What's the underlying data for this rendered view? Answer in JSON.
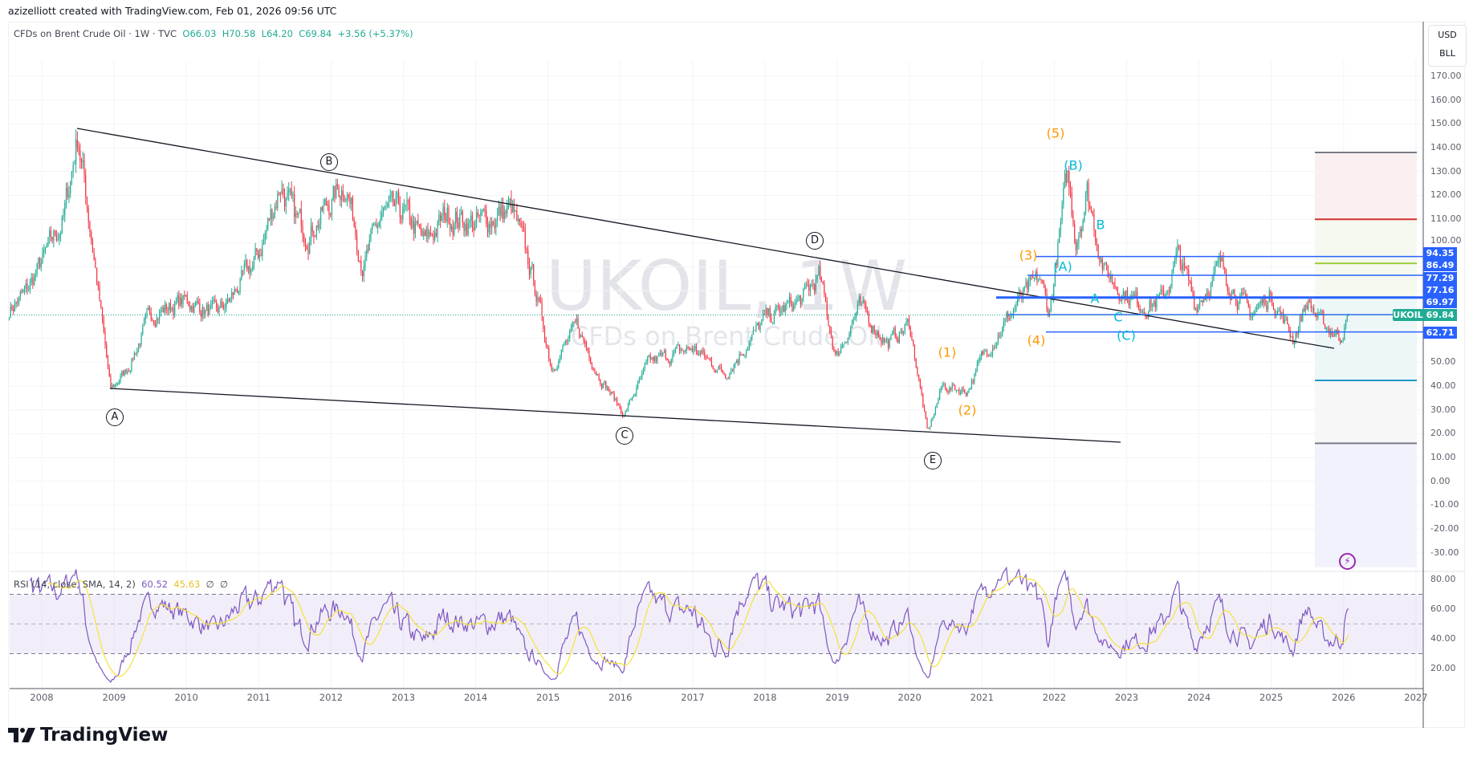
{
  "credit": "azizelliott created with TradingView.com, Feb 01, 2026 09:56 UTC",
  "legend": {
    "name": "CFDs on Brent Crude Oil · 1W · TVC",
    "open": "O66.03",
    "high": "H70.58",
    "low": "L64.20",
    "close": "C69.84",
    "change": "+3.56 (+5.37%)"
  },
  "watermark": {
    "symbol": "UKOIL, 1W",
    "description": "CFDs on Brent Crude Oil"
  },
  "units": {
    "currency": "USD",
    "unit": "BLL"
  },
  "rsi_legend": {
    "label": "RSI (14, close, SMA, 14, 2)",
    "rsi": "60.52",
    "sma": "45.63",
    "v3": "∅",
    "v4": "∅"
  },
  "price_ticks": [
    "170.00",
    "160.00",
    "150.00",
    "140.00",
    "130.00",
    "120.00",
    "110.00",
    "100.00",
    "50.00",
    "40.00",
    "30.00",
    "20.00",
    "10.00",
    "0.00",
    "-10.00",
    "-20.00",
    "-30.00"
  ],
  "rsi_ticks": [
    "80.00",
    "60.00",
    "40.00",
    "20.00"
  ],
  "years": [
    "2008",
    "2009",
    "2010",
    "2011",
    "2012",
    "2013",
    "2014",
    "2015",
    "2016",
    "2017",
    "2018",
    "2019",
    "2020",
    "2021",
    "2022",
    "2023",
    "2024",
    "2025",
    "2026",
    "2027"
  ],
  "price_labels": [
    "94.35",
    "86.49",
    "77.29",
    "77.16",
    "69.97",
    "62.71"
  ],
  "last_price": {
    "symbol": "UKOIL",
    "value": "69.84"
  },
  "waves": {
    "triangle": [
      "A",
      "B",
      "C",
      "D",
      "E"
    ],
    "impulse": [
      "(1)",
      "(2)",
      "(3)",
      "(4)",
      "(5)"
    ],
    "correction": [
      "(A)",
      "(B)",
      "(C)",
      "A",
      "B",
      "C"
    ]
  },
  "logo": "TradingView",
  "colors": {
    "up": "#22ab94",
    "down": "#f23645",
    "rsi": "#7e57c2",
    "rsi_sma": "#f5e23b",
    "levels": "#2962ff",
    "orange": "#ff9800",
    "cyan": "#00bcd4"
  },
  "chart_data": {
    "type": "candlestick",
    "symbol": "UKOIL",
    "timeframe": "1W",
    "ylim": [
      -30,
      170
    ],
    "xlim": [
      "2007-07",
      "2027-01"
    ],
    "anchors_year_price": [
      [
        2007.55,
        72
      ],
      [
        2007.8,
        80
      ],
      [
        2008.0,
        92
      ],
      [
        2008.3,
        110
      ],
      [
        2008.5,
        146
      ],
      [
        2008.7,
        100
      ],
      [
        2008.95,
        38
      ],
      [
        2009.2,
        48
      ],
      [
        2009.5,
        70
      ],
      [
        2010.0,
        76
      ],
      [
        2010.4,
        70
      ],
      [
        2010.6,
        76
      ],
      [
        2011.0,
        95
      ],
      [
        2011.3,
        125
      ],
      [
        2011.5,
        110
      ],
      [
        2011.7,
        105
      ],
      [
        2012.2,
        126
      ],
      [
        2012.45,
        90
      ],
      [
        2012.7,
        112
      ],
      [
        2013.0,
        113
      ],
      [
        2013.3,
        100
      ],
      [
        2013.6,
        112
      ],
      [
        2014.0,
        108
      ],
      [
        2014.5,
        114
      ],
      [
        2014.8,
        85
      ],
      [
        2015.05,
        48
      ],
      [
        2015.4,
        65
      ],
      [
        2015.7,
        45
      ],
      [
        2016.05,
        28
      ],
      [
        2016.4,
        50
      ],
      [
        2017.0,
        56
      ],
      [
        2017.45,
        45
      ],
      [
        2018.0,
        68
      ],
      [
        2018.5,
        76
      ],
      [
        2018.75,
        86
      ],
      [
        2018.98,
        52
      ],
      [
        2019.3,
        73
      ],
      [
        2019.7,
        58
      ],
      [
        2020.0,
        66
      ],
      [
        2020.25,
        20
      ],
      [
        2020.45,
        40
      ],
      [
        2020.8,
        38
      ],
      [
        2021.0,
        52
      ],
      [
        2021.5,
        75
      ],
      [
        2021.8,
        85
      ],
      [
        2021.93,
        70
      ],
      [
        2022.18,
        128
      ],
      [
        2022.3,
        102
      ],
      [
        2022.45,
        122
      ],
      [
        2022.7,
        88
      ],
      [
        2022.95,
        80
      ],
      [
        2023.2,
        74
      ],
      [
        2023.5,
        76
      ],
      [
        2023.72,
        95
      ],
      [
        2023.95,
        74
      ],
      [
        2024.3,
        90
      ],
      [
        2024.7,
        70
      ],
      [
        2025.0,
        78
      ],
      [
        2025.3,
        60
      ],
      [
        2025.5,
        76
      ],
      [
        2025.7,
        66
      ],
      [
        2025.95,
        61
      ],
      [
        2026.08,
        69.84
      ]
    ],
    "rsi": {
      "period": 14,
      "sma": 14,
      "bands": [
        70,
        50,
        30
      ],
      "ylim": [
        10,
        85
      ]
    },
    "levels": [
      94.35,
      86.49,
      77.16,
      69.97,
      62.71
    ],
    "position_tool": {
      "stop": 138,
      "target1": 110,
      "target2": 91.5,
      "entry": 77.29,
      "lower": 42.4,
      "bottom": 16
    }
  }
}
